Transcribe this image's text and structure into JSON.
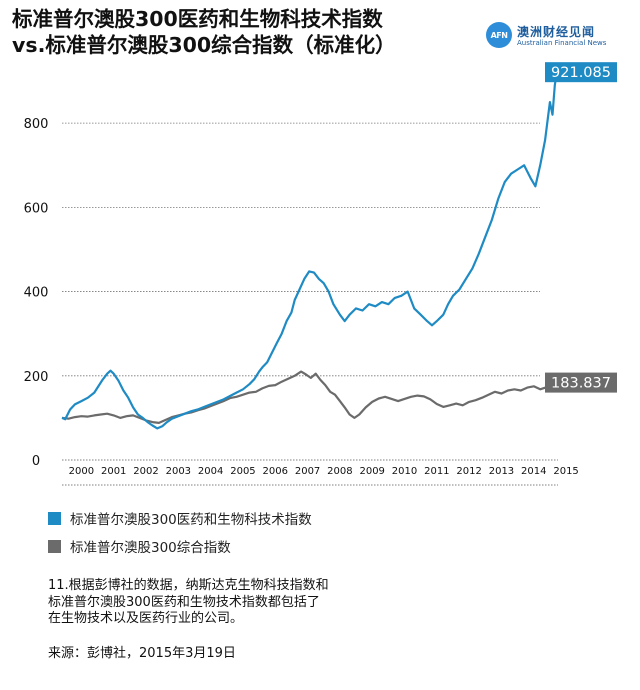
{
  "header": {
    "title_line1": "标准普尔澳股300医药和生物科技术指数",
    "title_line2": "vs.标准普尔澳股300综合指数（标准化）"
  },
  "logo": {
    "mark": "AFN",
    "name_cn": "澳洲财经见闻",
    "name_en": "Australian Financial News"
  },
  "chart_data": {
    "type": "line",
    "x_tick_labels": [
      "2000",
      "2001",
      "2002",
      "2003",
      "2004",
      "2005",
      "2006",
      "2007",
      "2008",
      "2009",
      "2010",
      "2011",
      "2012",
      "2013",
      "2014",
      "2015"
    ],
    "y_tick_labels": [
      "0",
      "200",
      "400",
      "600",
      "800"
    ],
    "ylim": [
      0,
      950
    ],
    "xlim": [
      1999.9,
      2015.25
    ],
    "grid": true,
    "legend_position": "bottom",
    "colors": {
      "health": "#1f8bc4",
      "composite": "#6b6b6b"
    },
    "series": [
      {
        "name": "标准普尔澳股300医药和生物科技术指数",
        "end_label": "921.085",
        "points": [
          [
            1999.9,
            100
          ],
          [
            2000.0,
            97
          ],
          [
            2000.15,
            120
          ],
          [
            2000.3,
            132
          ],
          [
            2000.5,
            140
          ],
          [
            2000.7,
            148
          ],
          [
            2000.9,
            160
          ],
          [
            2001.0,
            172
          ],
          [
            2001.15,
            190
          ],
          [
            2001.3,
            205
          ],
          [
            2001.4,
            212
          ],
          [
            2001.5,
            205
          ],
          [
            2001.65,
            188
          ],
          [
            2001.8,
            165
          ],
          [
            2001.95,
            148
          ],
          [
            2002.1,
            125
          ],
          [
            2002.25,
            108
          ],
          [
            2002.4,
            100
          ],
          [
            2002.55,
            90
          ],
          [
            2002.7,
            82
          ],
          [
            2002.85,
            75
          ],
          [
            2003.0,
            80
          ],
          [
            2003.15,
            90
          ],
          [
            2003.3,
            98
          ],
          [
            2003.5,
            104
          ],
          [
            2003.7,
            110
          ],
          [
            2003.9,
            116
          ],
          [
            2004.1,
            120
          ],
          [
            2004.3,
            126
          ],
          [
            2004.5,
            132
          ],
          [
            2004.7,
            138
          ],
          [
            2004.9,
            144
          ],
          [
            2005.1,
            152
          ],
          [
            2005.3,
            160
          ],
          [
            2005.5,
            168
          ],
          [
            2005.7,
            180
          ],
          [
            2005.85,
            192
          ],
          [
            2006.0,
            210
          ],
          [
            2006.1,
            220
          ],
          [
            2006.25,
            232
          ],
          [
            2006.4,
            255
          ],
          [
            2006.55,
            278
          ],
          [
            2006.7,
            300
          ],
          [
            2006.85,
            330
          ],
          [
            2007.0,
            350
          ],
          [
            2007.1,
            380
          ],
          [
            2007.25,
            405
          ],
          [
            2007.4,
            430
          ],
          [
            2007.55,
            448
          ],
          [
            2007.7,
            445
          ],
          [
            2007.85,
            430
          ],
          [
            2008.0,
            420
          ],
          [
            2008.15,
            400
          ],
          [
            2008.3,
            370
          ],
          [
            2008.5,
            345
          ],
          [
            2008.65,
            330
          ],
          [
            2008.8,
            345
          ],
          [
            2009.0,
            360
          ],
          [
            2009.2,
            355
          ],
          [
            2009.4,
            370
          ],
          [
            2009.6,
            365
          ],
          [
            2009.8,
            375
          ],
          [
            2010.0,
            370
          ],
          [
            2010.2,
            385
          ],
          [
            2010.4,
            390
          ],
          [
            2010.6,
            400
          ],
          [
            2010.8,
            360
          ],
          [
            2011.0,
            345
          ],
          [
            2011.2,
            330
          ],
          [
            2011.35,
            320
          ],
          [
            2011.5,
            330
          ],
          [
            2011.7,
            345
          ],
          [
            2011.85,
            370
          ],
          [
            2012.0,
            390
          ],
          [
            2012.2,
            405
          ],
          [
            2012.4,
            430
          ],
          [
            2012.6,
            455
          ],
          [
            2012.8,
            490
          ],
          [
            2013.0,
            530
          ],
          [
            2013.2,
            570
          ],
          [
            2013.4,
            620
          ],
          [
            2013.6,
            660
          ],
          [
            2013.8,
            680
          ],
          [
            2014.0,
            690
          ],
          [
            2014.2,
            700
          ],
          [
            2014.4,
            670
          ],
          [
            2014.55,
            650
          ],
          [
            2014.7,
            700
          ],
          [
            2014.85,
            760
          ],
          [
            2014.95,
            820
          ],
          [
            2015.0,
            850
          ],
          [
            2015.08,
            820
          ],
          [
            2015.15,
            890
          ],
          [
            2015.21,
            921.085
          ]
        ]
      },
      {
        "name": "标准普尔澳股300综合指数",
        "end_label": "183.837",
        "points": [
          [
            1999.9,
            100
          ],
          [
            2000.1,
            98
          ],
          [
            2000.3,
            102
          ],
          [
            2000.5,
            104
          ],
          [
            2000.7,
            103
          ],
          [
            2000.9,
            106
          ],
          [
            2001.1,
            108
          ],
          [
            2001.3,
            110
          ],
          [
            2001.5,
            106
          ],
          [
            2001.7,
            100
          ],
          [
            2001.9,
            104
          ],
          [
            2002.1,
            106
          ],
          [
            2002.3,
            100
          ],
          [
            2002.5,
            94
          ],
          [
            2002.7,
            90
          ],
          [
            2002.9,
            88
          ],
          [
            2003.1,
            95
          ],
          [
            2003.3,
            102
          ],
          [
            2003.5,
            106
          ],
          [
            2003.7,
            110
          ],
          [
            2003.9,
            113
          ],
          [
            2004.1,
            118
          ],
          [
            2004.3,
            122
          ],
          [
            2004.5,
            128
          ],
          [
            2004.7,
            134
          ],
          [
            2004.9,
            140
          ],
          [
            2005.1,
            147
          ],
          [
            2005.3,
            150
          ],
          [
            2005.5,
            155
          ],
          [
            2005.7,
            160
          ],
          [
            2005.9,
            162
          ],
          [
            2006.1,
            170
          ],
          [
            2006.3,
            176
          ],
          [
            2006.5,
            178
          ],
          [
            2006.7,
            186
          ],
          [
            2006.9,
            193
          ],
          [
            2007.1,
            200
          ],
          [
            2007.3,
            210
          ],
          [
            2007.45,
            203
          ],
          [
            2007.6,
            195
          ],
          [
            2007.75,
            205
          ],
          [
            2007.9,
            190
          ],
          [
            2008.05,
            178
          ],
          [
            2008.2,
            162
          ],
          [
            2008.35,
            155
          ],
          [
            2008.5,
            140
          ],
          [
            2008.65,
            125
          ],
          [
            2008.8,
            108
          ],
          [
            2008.95,
            100
          ],
          [
            2009.1,
            108
          ],
          [
            2009.3,
            125
          ],
          [
            2009.5,
            138
          ],
          [
            2009.7,
            146
          ],
          [
            2009.9,
            150
          ],
          [
            2010.1,
            145
          ],
          [
            2010.3,
            140
          ],
          [
            2010.5,
            145
          ],
          [
            2010.7,
            150
          ],
          [
            2010.9,
            153
          ],
          [
            2011.1,
            151
          ],
          [
            2011.3,
            144
          ],
          [
            2011.5,
            133
          ],
          [
            2011.7,
            126
          ],
          [
            2011.9,
            130
          ],
          [
            2012.1,
            134
          ],
          [
            2012.3,
            130
          ],
          [
            2012.5,
            138
          ],
          [
            2012.7,
            142
          ],
          [
            2012.9,
            148
          ],
          [
            2013.1,
            155
          ],
          [
            2013.3,
            162
          ],
          [
            2013.5,
            158
          ],
          [
            2013.7,
            165
          ],
          [
            2013.9,
            168
          ],
          [
            2014.1,
            165
          ],
          [
            2014.3,
            172
          ],
          [
            2014.5,
            175
          ],
          [
            2014.7,
            168
          ],
          [
            2014.9,
            173
          ],
          [
            2015.05,
            170
          ],
          [
            2015.15,
            180
          ],
          [
            2015.21,
            183.837
          ]
        ]
      }
    ]
  },
  "legend": [
    {
      "label": "标准普尔澳股300医药和生物科技术指数",
      "color": "#1f8bc4"
    },
    {
      "label": "标准普尔澳股300综合指数",
      "color": "#6b6b6b"
    }
  ],
  "note": {
    "line1": "11.根据彭博社的数据，纳斯达克生物科技指数和",
    "line2": "标准普尔澳股300医药和生物技术指数都包括了",
    "line3": "在生物技术以及医药行业的公司。"
  },
  "source": "来源：彭博社，2015年3月19日"
}
